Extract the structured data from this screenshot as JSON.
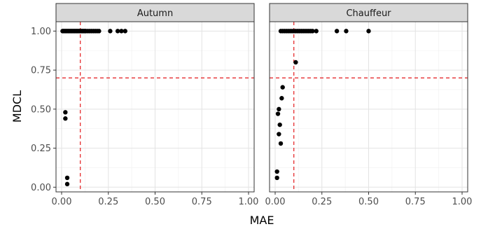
{
  "chart_data": {
    "type": "scatter",
    "xlabel": "MAE",
    "ylabel": "MDCL",
    "xlim": [
      -0.03,
      1.03
    ],
    "ylim": [
      -0.03,
      1.06
    ],
    "x_ticks": [
      0.0,
      0.25,
      0.5,
      0.75,
      1.0
    ],
    "x_tick_labels": [
      "0.00",
      "0.25",
      "0.50",
      "0.75",
      "1.00"
    ],
    "y_ticks": [
      0.0,
      0.25,
      0.5,
      0.75,
      1.0
    ],
    "y_tick_labels": [
      "0.00",
      "0.25",
      "0.50",
      "0.75",
      "1.00"
    ],
    "grid": true,
    "reference_lines": {
      "vertical_x": 0.1,
      "horizontal_y": 0.7,
      "color": "#e41a1c",
      "style": "dashed"
    },
    "point_color": "#000000",
    "panel_background": "#ffffff",
    "strip_background": "#d9d9d9",
    "panels": [
      {
        "name": "Autumn",
        "points": [
          {
            "x": 0.005,
            "y": 1.0
          },
          {
            "x": 0.01,
            "y": 1.0
          },
          {
            "x": 0.015,
            "y": 1.0
          },
          {
            "x": 0.02,
            "y": 1.0
          },
          {
            "x": 0.025,
            "y": 1.0
          },
          {
            "x": 0.03,
            "y": 1.0
          },
          {
            "x": 0.035,
            "y": 1.0
          },
          {
            "x": 0.04,
            "y": 1.0
          },
          {
            "x": 0.045,
            "y": 1.0
          },
          {
            "x": 0.05,
            "y": 1.0
          },
          {
            "x": 0.055,
            "y": 1.0
          },
          {
            "x": 0.06,
            "y": 1.0
          },
          {
            "x": 0.065,
            "y": 1.0
          },
          {
            "x": 0.07,
            "y": 1.0
          },
          {
            "x": 0.075,
            "y": 1.0
          },
          {
            "x": 0.08,
            "y": 1.0
          },
          {
            "x": 0.085,
            "y": 1.0
          },
          {
            "x": 0.09,
            "y": 1.0
          },
          {
            "x": 0.095,
            "y": 1.0
          },
          {
            "x": 0.1,
            "y": 1.0
          },
          {
            "x": 0.105,
            "y": 1.0
          },
          {
            "x": 0.11,
            "y": 1.0
          },
          {
            "x": 0.115,
            "y": 1.0
          },
          {
            "x": 0.12,
            "y": 1.0
          },
          {
            "x": 0.125,
            "y": 1.0
          },
          {
            "x": 0.13,
            "y": 1.0
          },
          {
            "x": 0.14,
            "y": 1.0
          },
          {
            "x": 0.15,
            "y": 1.0
          },
          {
            "x": 0.16,
            "y": 1.0
          },
          {
            "x": 0.17,
            "y": 1.0
          },
          {
            "x": 0.18,
            "y": 1.0
          },
          {
            "x": 0.19,
            "y": 1.0
          },
          {
            "x": 0.2,
            "y": 1.0
          },
          {
            "x": 0.26,
            "y": 1.0
          },
          {
            "x": 0.3,
            "y": 1.0
          },
          {
            "x": 0.32,
            "y": 1.0
          },
          {
            "x": 0.34,
            "y": 1.0
          },
          {
            "x": 0.02,
            "y": 0.48
          },
          {
            "x": 0.02,
            "y": 0.44
          },
          {
            "x": 0.03,
            "y": 0.06
          },
          {
            "x": 0.03,
            "y": 0.02
          }
        ]
      },
      {
        "name": "Chauffeur",
        "points": [
          {
            "x": 0.03,
            "y": 1.0
          },
          {
            "x": 0.04,
            "y": 1.0
          },
          {
            "x": 0.05,
            "y": 1.0
          },
          {
            "x": 0.06,
            "y": 1.0
          },
          {
            "x": 0.07,
            "y": 1.0
          },
          {
            "x": 0.08,
            "y": 1.0
          },
          {
            "x": 0.09,
            "y": 1.0
          },
          {
            "x": 0.1,
            "y": 1.0
          },
          {
            "x": 0.11,
            "y": 1.0
          },
          {
            "x": 0.12,
            "y": 1.0
          },
          {
            "x": 0.13,
            "y": 1.0
          },
          {
            "x": 0.14,
            "y": 1.0
          },
          {
            "x": 0.15,
            "y": 1.0
          },
          {
            "x": 0.16,
            "y": 1.0
          },
          {
            "x": 0.17,
            "y": 1.0
          },
          {
            "x": 0.18,
            "y": 1.0
          },
          {
            "x": 0.19,
            "y": 1.0
          },
          {
            "x": 0.2,
            "y": 1.0
          },
          {
            "x": 0.22,
            "y": 1.0
          },
          {
            "x": 0.33,
            "y": 1.0
          },
          {
            "x": 0.38,
            "y": 1.0
          },
          {
            "x": 0.5,
            "y": 1.0
          },
          {
            "x": 0.11,
            "y": 0.8
          },
          {
            "x": 0.04,
            "y": 0.64
          },
          {
            "x": 0.035,
            "y": 0.57
          },
          {
            "x": 0.02,
            "y": 0.5
          },
          {
            "x": 0.015,
            "y": 0.47
          },
          {
            "x": 0.025,
            "y": 0.4
          },
          {
            "x": 0.02,
            "y": 0.34
          },
          {
            "x": 0.03,
            "y": 0.28
          },
          {
            "x": 0.01,
            "y": 0.1
          },
          {
            "x": 0.01,
            "y": 0.06
          }
        ]
      }
    ]
  }
}
